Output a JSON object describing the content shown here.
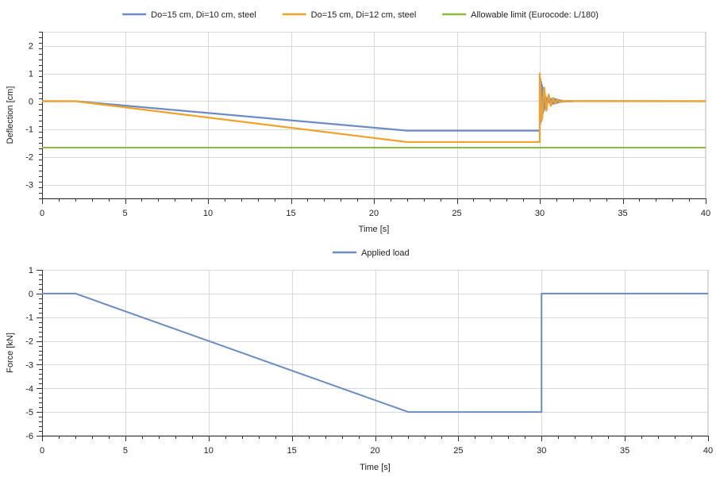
{
  "chart_data": [
    {
      "type": "line",
      "title": "",
      "xlabel": "Time [s]",
      "ylabel": "Deflection [cm]",
      "xlim": [
        0,
        40
      ],
      "ylim": [
        -3.5,
        2.5
      ],
      "xticks": [
        0,
        5,
        10,
        15,
        20,
        25,
        30,
        35,
        40
      ],
      "xtick_labels": [
        "0",
        "5",
        "10",
        "15",
        "20",
        "25",
        "30",
        "35",
        "40"
      ],
      "yticks": [
        2,
        1,
        0,
        -1,
        -2,
        -3
      ],
      "ytick_labels": [
        "2",
        "1",
        "0",
        "-1",
        "-2",
        "-3"
      ],
      "grid": true,
      "legend_position": "top-center",
      "series": [
        {
          "name": "Do=15 cm, Di=10 cm, steel",
          "color": "#6b8cc6",
          "oscillation": {
            "start": 30,
            "end": 32,
            "amplitude": 0.9
          },
          "x": [
            0,
            2,
            22,
            30,
            40
          ],
          "y": [
            0,
            0,
            -1.06,
            -1.06,
            0
          ]
        },
        {
          "name": "Do=15 cm, Di=12 cm, steel",
          "color": "#f0a22b",
          "oscillation": {
            "start": 30,
            "end": 33.5,
            "amplitude": 1.0
          },
          "x": [
            0,
            2,
            22,
            30,
            40
          ],
          "y": [
            0,
            0,
            -1.47,
            -1.47,
            0
          ]
        },
        {
          "name": "Allowable limit (Eurocode: L/180)",
          "color": "#8dbb3e",
          "x": [
            0,
            40
          ],
          "y": [
            -1.67,
            -1.67
          ]
        }
      ]
    },
    {
      "type": "line",
      "title": "",
      "xlabel": "Time [s]",
      "ylabel": "Force [kN]",
      "xlim": [
        0,
        40
      ],
      "ylim": [
        -6,
        1
      ],
      "xticks": [
        0,
        5,
        10,
        15,
        20,
        25,
        30,
        35,
        40
      ],
      "xtick_labels": [
        "0",
        "5",
        "10",
        "15",
        "20",
        "25",
        "30",
        "35",
        "40"
      ],
      "yticks": [
        1,
        0,
        -1,
        -2,
        -3,
        -4,
        -5,
        -6
      ],
      "ytick_labels": [
        "1",
        "0",
        "-1",
        "-2",
        "-3",
        "-4",
        "-5",
        "-6"
      ],
      "grid": true,
      "legend_position": "top-center",
      "series": [
        {
          "name": "Applied load",
          "color": "#6b8cc6",
          "x": [
            0,
            2,
            22,
            30,
            30,
            40
          ],
          "y": [
            0,
            0,
            -5,
            -5,
            0,
            0
          ]
        }
      ]
    }
  ]
}
